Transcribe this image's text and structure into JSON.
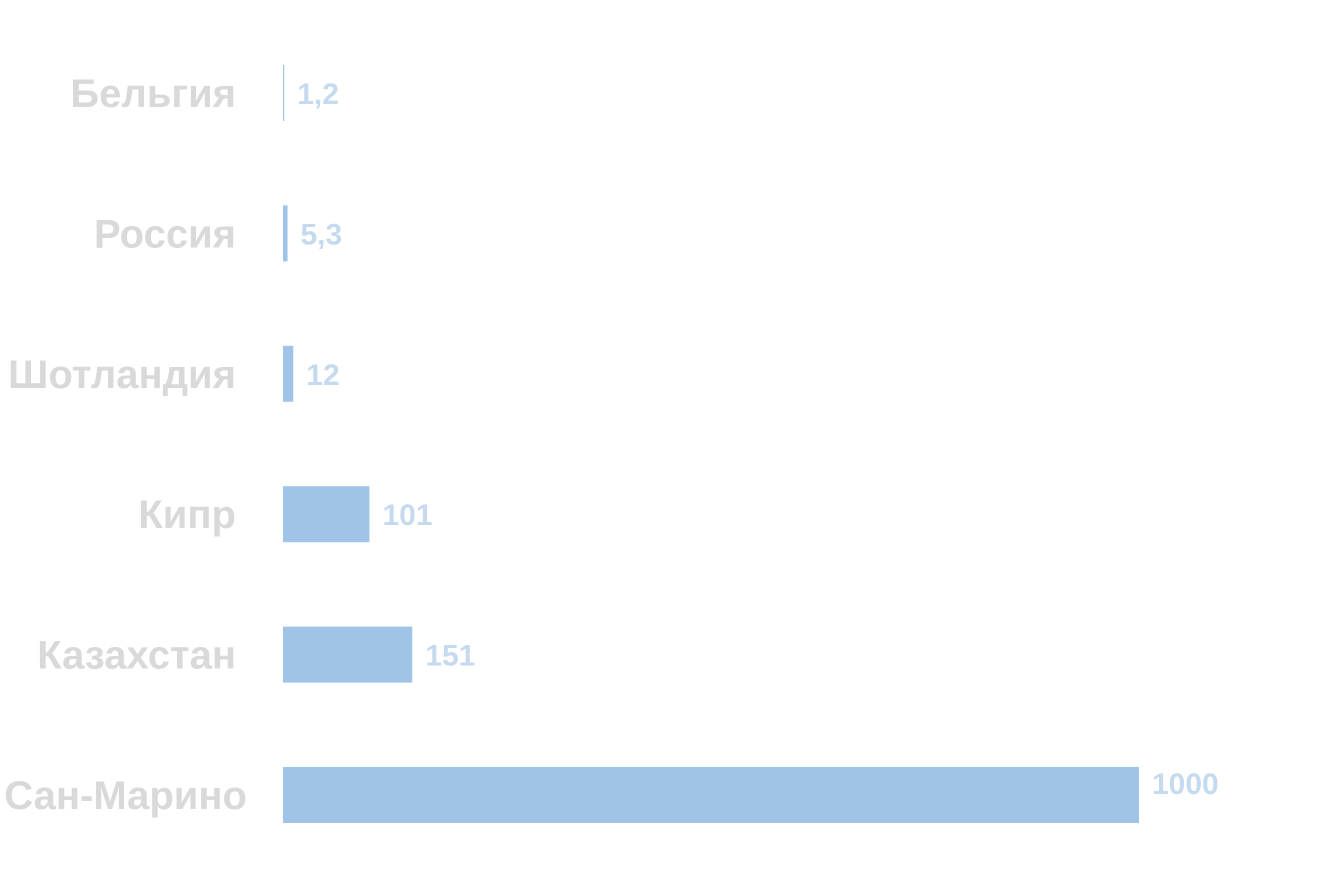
{
  "chart_data": {
    "type": "bar",
    "orientation": "horizontal",
    "categories": [
      "Бельгия",
      "Россия",
      "Шотландия",
      "Кипр",
      "Казахстан",
      "Сан-Марино"
    ],
    "values": [
      1.2,
      5.3,
      12,
      101,
      151,
      1000
    ],
    "value_labels": [
      "1,2",
      "5,3",
      "12",
      "101",
      "151",
      "1000"
    ],
    "xlim": [
      0,
      1000
    ],
    "grid": false,
    "legend": "none"
  },
  "colors": {
    "bar": "#9fc4e7",
    "value_label": "#c6daef",
    "category_label": "#d9d9d9",
    "background": "#ffffff"
  }
}
